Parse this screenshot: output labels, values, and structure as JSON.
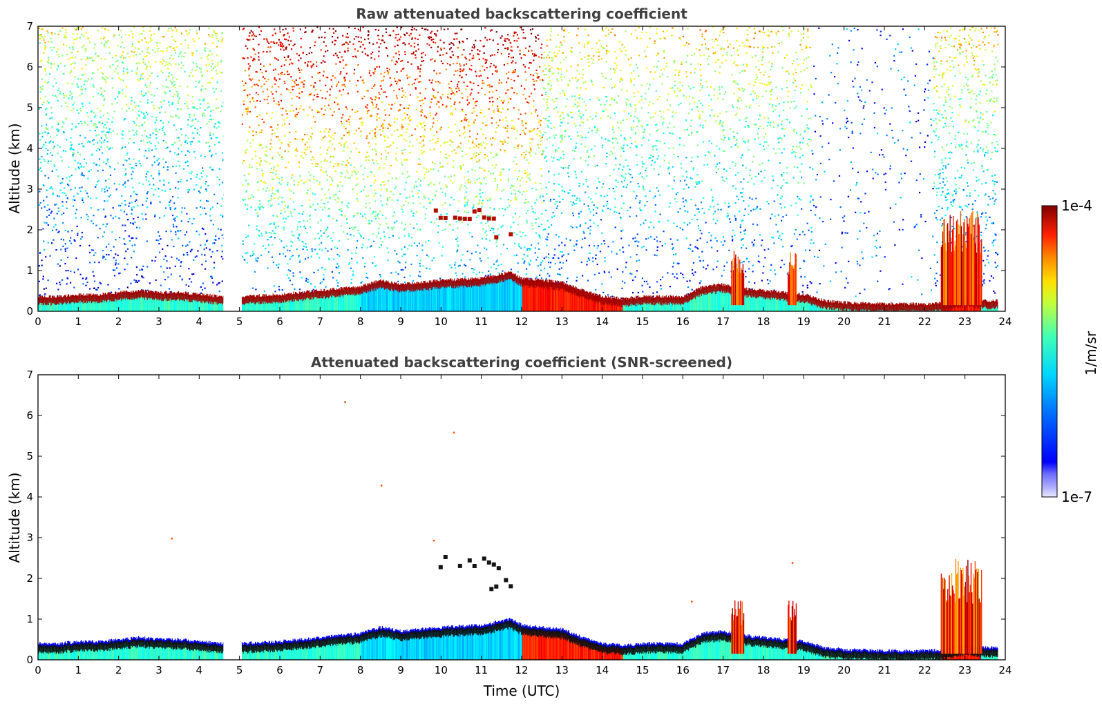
{
  "chart_data": [
    {
      "type": "heatmap",
      "id": "raw",
      "title": "Raw attenuated backscattering coefficient",
      "xlabel": "",
      "ylabel": "Altitude (km)",
      "xlim": [
        0,
        24
      ],
      "ylim": [
        0,
        7
      ],
      "xticks": [
        0,
        1,
        2,
        3,
        4,
        5,
        6,
        7,
        8,
        9,
        10,
        11,
        12,
        13,
        14,
        15,
        16,
        17,
        18,
        19,
        20,
        21,
        22,
        23,
        24
      ],
      "yticks": [
        0,
        1,
        2,
        3,
        4,
        5,
        6,
        7
      ],
      "data_gap_hours": [
        4.6,
        5.05
      ],
      "background_noise": "dense noise increasing with altitude; strongest (orange/red) between 5 and 12 UTC above 4 km; sparse blue clear zone 19-22 UTC",
      "layers": [
        {
          "name": "boundary-layer-top",
          "hours": [
            0,
            0.5,
            1,
            1.5,
            2,
            2.5,
            3,
            3.5,
            4,
            4.6,
            5.05,
            6,
            7,
            8,
            8.5,
            9,
            10,
            11,
            11.7,
            12,
            12.5,
            13,
            13.5,
            14,
            14.5,
            15,
            15.5,
            16,
            16.5,
            17,
            17.5,
            18,
            18.5,
            19,
            19.5,
            20,
            21,
            22,
            22.5,
            23,
            23.5,
            23.8
          ],
          "altitude_km": [
            0.3,
            0.3,
            0.35,
            0.35,
            0.4,
            0.45,
            0.4,
            0.4,
            0.35,
            0.3,
            0.3,
            0.35,
            0.45,
            0.55,
            0.7,
            0.6,
            0.7,
            0.75,
            0.9,
            0.75,
            0.7,
            0.65,
            0.45,
            0.3,
            0.25,
            0.3,
            0.3,
            0.3,
            0.55,
            0.6,
            0.5,
            0.45,
            0.4,
            0.35,
            0.2,
            0.15,
            0.12,
            0.12,
            0.15,
            0.25,
            0.2,
            0.2
          ]
        }
      ],
      "elevated_cloud_hours": [
        [
          9.7,
          11.6,
          2.2,
          2.5
        ],
        [
          11.2,
          11.7,
          1.7,
          2.0
        ]
      ],
      "plumes": [
        [
          17.2,
          17.5,
          1.5
        ],
        [
          18.6,
          18.8,
          1.5
        ],
        [
          22.4,
          23.4,
          2.5
        ]
      ]
    },
    {
      "type": "heatmap",
      "id": "screened",
      "title": "Attenuated backscattering coefficient (SNR-screened)",
      "xlabel": "Time (UTC)",
      "ylabel": "Altitude (km)",
      "xlim": [
        0,
        24
      ],
      "ylim": [
        0,
        7
      ],
      "xticks": [
        0,
        1,
        2,
        3,
        4,
        5,
        6,
        7,
        8,
        9,
        10,
        11,
        12,
        13,
        14,
        15,
        16,
        17,
        18,
        19,
        20,
        21,
        22,
        23,
        24
      ],
      "yticks": [
        0,
        1,
        2,
        3,
        4,
        5,
        6,
        7
      ],
      "data_gap_hours": [
        4.6,
        5.05
      ],
      "background_noise": "removed by SNR screening",
      "layers": [
        {
          "name": "boundary-layer-top",
          "hours": [
            0,
            0.5,
            1,
            1.5,
            2,
            2.5,
            3,
            3.5,
            4,
            4.6,
            5.05,
            6,
            7,
            8,
            8.5,
            9,
            10,
            11,
            11.7,
            12,
            12.5,
            13,
            13.5,
            14,
            14.5,
            15,
            15.5,
            16,
            16.5,
            17,
            17.5,
            18,
            18.5,
            19,
            19.5,
            20,
            21,
            22,
            22.5,
            23,
            23.5,
            23.8
          ],
          "altitude_km": [
            0.3,
            0.3,
            0.35,
            0.35,
            0.4,
            0.45,
            0.4,
            0.4,
            0.35,
            0.3,
            0.3,
            0.35,
            0.45,
            0.55,
            0.7,
            0.6,
            0.7,
            0.75,
            0.9,
            0.75,
            0.7,
            0.65,
            0.45,
            0.3,
            0.25,
            0.3,
            0.3,
            0.3,
            0.55,
            0.6,
            0.5,
            0.45,
            0.4,
            0.35,
            0.2,
            0.15,
            0.12,
            0.12,
            0.15,
            0.25,
            0.2,
            0.2
          ]
        }
      ],
      "elevated_cloud_hours": [
        [
          9.7,
          11.6,
          2.2,
          2.5
        ],
        [
          11.2,
          11.7,
          1.7,
          2.0
        ]
      ],
      "plumes": [
        [
          17.2,
          17.5,
          1.5
        ],
        [
          18.6,
          18.8,
          1.5
        ],
        [
          22.4,
          23.4,
          2.5
        ]
      ]
    }
  ],
  "colorbar": {
    "label": "1/m/sr",
    "max_label": "1e-4",
    "min_label": "1e-7",
    "scale": "log",
    "colormap": "jet"
  },
  "colors": {
    "title_gray": "#404040",
    "axis_black": "#000000",
    "background": "#ffffff"
  }
}
